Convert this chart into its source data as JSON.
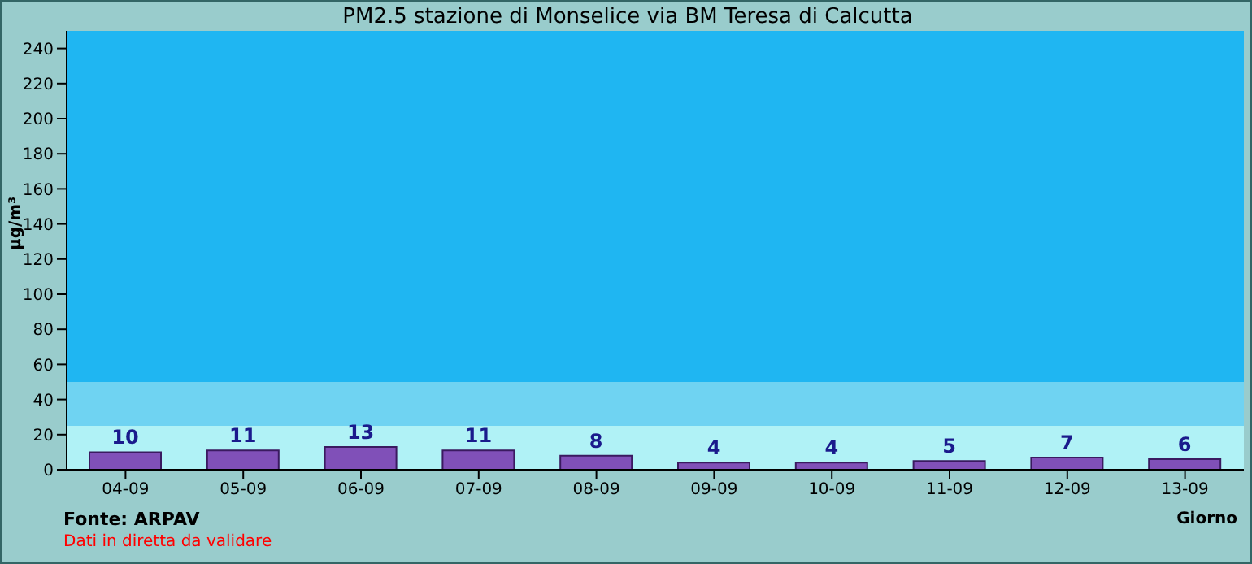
{
  "chart_data": {
    "type": "bar",
    "title": "PM2.5 stazione di Monselice via BM Teresa di Calcutta",
    "xlabel": "Giorno",
    "ylabel": "µg/m³",
    "categories": [
      "04-09",
      "05-09",
      "06-09",
      "07-09",
      "08-09",
      "09-09",
      "10-09",
      "11-09",
      "12-09",
      "13-09"
    ],
    "values": [
      10,
      11,
      13,
      11,
      8,
      4,
      4,
      5,
      7,
      6
    ],
    "color": "#8050b8",
    "data_labels": true,
    "ylim": [
      0,
      250
    ],
    "yticks": [
      0,
      20,
      40,
      60,
      80,
      100,
      120,
      140,
      160,
      180,
      200,
      220,
      240
    ],
    "grid": false,
    "legend": false,
    "bands": [
      {
        "axis": "y",
        "from": 0,
        "to": 25,
        "color": "#b0f2f6"
      },
      {
        "axis": "y",
        "from": 25,
        "to": 50,
        "color": "#6fd3f2"
      },
      {
        "axis": "y",
        "from": 50,
        "to": 250,
        "color": "#1fb6f2"
      }
    ],
    "annotations": [
      "Fonte: ARPAV",
      "Dati in diretta da validare"
    ]
  }
}
